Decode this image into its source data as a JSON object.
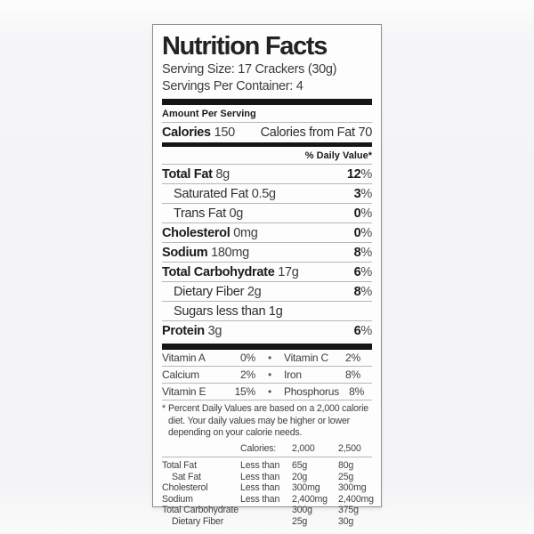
{
  "label": {
    "title": "Nutrition Facts",
    "serving_size": "Serving Size: 17 Crackers (30g)",
    "servings_per_container": "Servings Per Container: 4",
    "amount_per_serving": "Amount Per Serving",
    "calories_label": "Calories",
    "calories_value": "150",
    "calories_from_fat": "Calories from Fat 70",
    "daily_value_header": "% Daily Value*",
    "percent_sign": "%",
    "nutrients": [
      {
        "name": "Total Fat",
        "amount": "8g",
        "pct": "12"
      },
      {
        "name": "Saturated Fat",
        "amount": "0.5g",
        "pct": "3"
      },
      {
        "name": "Trans Fat",
        "amount": "0g",
        "pct": "0"
      },
      {
        "name": "Cholesterol",
        "amount": "0mg",
        "pct": "0"
      },
      {
        "name": "Sodium",
        "amount": "180mg",
        "pct": "8"
      },
      {
        "name": "Total Carbohydrate",
        "amount": "17g",
        "pct": "6"
      },
      {
        "name": "Dietary Fiber",
        "amount": "2g",
        "pct": "8"
      },
      {
        "name": "Sugars less than 1g",
        "amount": "",
        "pct": ""
      },
      {
        "name": "Protein",
        "amount": "3g",
        "pct": "6"
      }
    ],
    "vitamins": {
      "bullet": "•",
      "rows": [
        {
          "n1": "Vitamin A",
          "p1": "0%",
          "n2": "Vitamin C",
          "p2": "2%"
        },
        {
          "n1": "Calcium",
          "p1": "2%",
          "n2": "Iron",
          "p2": "8%"
        },
        {
          "n1": "Vitamin E",
          "p1": "15%",
          "n2": "Phosphorus",
          "p2": "8%"
        }
      ]
    },
    "footnote": {
      "asterisk": "*",
      "text": "Percent Daily Values are based on a 2,000 calorie diet. Your daily values may be higher or lower depending on your calorie needs."
    },
    "footer": {
      "header": {
        "calories": "Calories:",
        "col1": "2,000",
        "col2": "2,500"
      },
      "rows": [
        {
          "name": "Total Fat",
          "cond": "Less than",
          "v1": "65g",
          "v2": "80g"
        },
        {
          "name": "Sat Fat",
          "cond": "Less than",
          "v1": "20g",
          "v2": "25g"
        },
        {
          "name": "Cholesterol",
          "cond": "Less than",
          "v1": "300mg",
          "v2": "300mg"
        },
        {
          "name": "Sodium",
          "cond": "Less than",
          "v1": "2,400mg",
          "v2": "2,400mg"
        },
        {
          "name": "Total Carbohydrate",
          "cond": "",
          "v1": "300g",
          "v2": "375g"
        },
        {
          "name": "Dietary Fiber",
          "cond": "",
          "v1": "25g",
          "v2": "30g"
        }
      ]
    },
    "colors": {
      "text": "#2e2e2e",
      "bar": "#161616",
      "rule": "#b7b7ba",
      "border": "#8d8e94",
      "background": "#f4f4f6",
      "label_background": "#fdfdfe"
    }
  }
}
